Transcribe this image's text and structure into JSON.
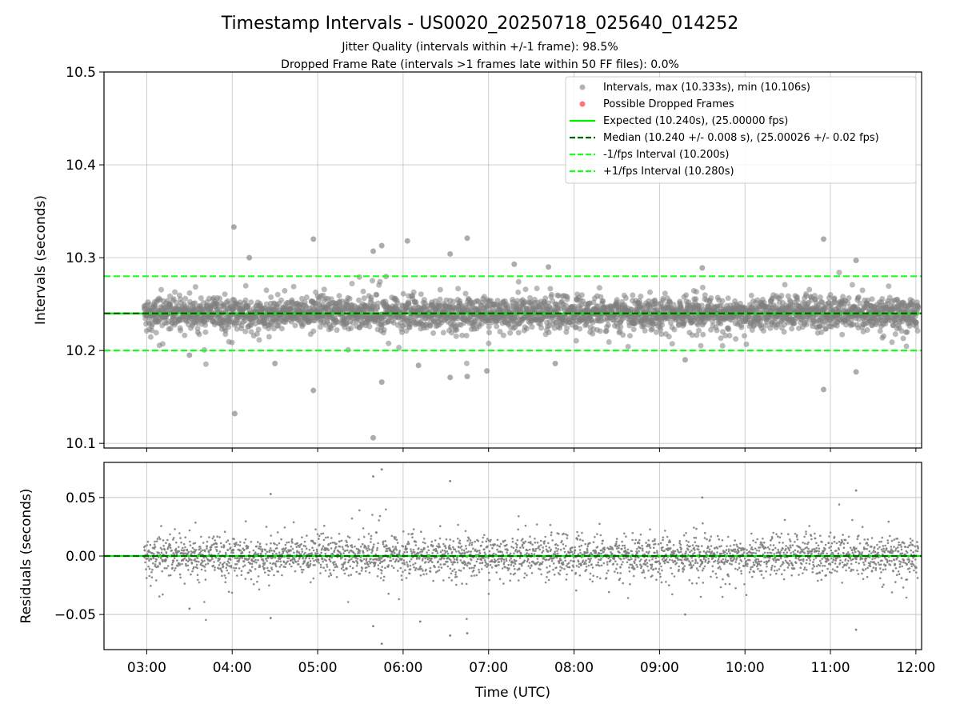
{
  "chart_data": [
    {
      "type": "scatter",
      "title": "Timestamp Intervals - US0020_20250718_025640_014252",
      "subtitle_lines": [
        "Jitter Quality (intervals within +/-1 frame): 98.5%",
        "Dropped Frame Rate (intervals >1 frames late within 50 FF files): 0.0%"
      ],
      "ylabel": "Intervals (seconds)",
      "ylim": [
        10.095,
        10.5
      ],
      "xlim": [
        "02:30",
        "12:04"
      ],
      "yticks": [
        "10.1",
        "10.2",
        "10.3",
        "10.4",
        "10.5"
      ],
      "grid": true,
      "legend_position": "top-right",
      "legend": [
        "Intervals, max (10.333s), min (10.106s)",
        "Possible Dropped Frames",
        "Expected (10.240s), (25.00000 fps)",
        "Median (10.240 +/- 0.008 s), (25.00026 +/- 0.02 fps)",
        "-1/fps Interval (10.200s)",
        "+1/fps Interval (10.280s)"
      ],
      "series": [
        {
          "name": "Intervals, max (10.333s), min (10.106s)",
          "color": "#808080",
          "points": [
            [
              3.0,
              10.24
            ],
            [
              12.0,
              10.24
            ]
          ]
        },
        {
          "name": "Possible Dropped Frames",
          "color": "#ff5a5a",
          "points": []
        }
      ],
      "summary": {
        "max": 10.333,
        "min": 10.106,
        "median": 10.24,
        "median_sd": 0.008,
        "count_approx": 3150
      },
      "outliers": [
        [
          4.02,
          10.333
        ],
        [
          4.03,
          10.132
        ],
        [
          4.95,
          10.32
        ],
        [
          4.95,
          10.157
        ],
        [
          5.65,
          10.307
        ],
        [
          5.75,
          10.313
        ],
        [
          5.65,
          10.106
        ],
        [
          5.75,
          10.166
        ],
        [
          6.75,
          10.321
        ],
        [
          6.55,
          10.304
        ],
        [
          6.55,
          10.171
        ],
        [
          6.75,
          10.172
        ],
        [
          6.98,
          10.178
        ],
        [
          6.18,
          10.184
        ],
        [
          7.78,
          10.186
        ],
        [
          10.92,
          10.32
        ],
        [
          10.92,
          10.158
        ],
        [
          11.3,
          10.297
        ],
        [
          11.3,
          10.177
        ],
        [
          4.2,
          10.3
        ],
        [
          6.05,
          10.318
        ],
        [
          7.3,
          10.293
        ],
        [
          7.7,
          10.29
        ],
        [
          9.5,
          10.289
        ],
        [
          9.3,
          10.19
        ],
        [
          3.5,
          10.195
        ],
        [
          4.5,
          10.186
        ]
      ],
      "reference_lines": [
        {
          "label": "Expected (10.240s), (25.00000 fps)",
          "y": 10.24,
          "color": "#00ee00",
          "style": "solid"
        },
        {
          "label": "Median (10.240 +/- 0.008 s), (25.00026 +/- 0.02 fps)",
          "y": 10.24,
          "color": "#006400",
          "style": "dashed"
        },
        {
          "label": "-1/fps Interval (10.200s)",
          "y": 10.2,
          "color": "#1aff1a",
          "style": "dashed"
        },
        {
          "label": "+1/fps Interval (10.280s)",
          "y": 10.28,
          "color": "#1aff1a",
          "style": "dashed"
        }
      ]
    },
    {
      "type": "scatter",
      "ylabel": "Residuals (seconds)",
      "xlabel": "Time (UTC)",
      "ylim": [
        -0.08,
        0.08
      ],
      "xlim": [
        "02:30",
        "12:04"
      ],
      "yticks": [
        "0.05",
        "0.00",
        "−0.05"
      ],
      "xticks": [
        "03:00",
        "04:00",
        "05:00",
        "06:00",
        "07:00",
        "08:00",
        "09:00",
        "10:00",
        "11:00",
        "12:00"
      ],
      "grid": true,
      "series": [
        {
          "name": "",
          "color": "#808080",
          "points": [
            [
              3.0,
              0.0
            ],
            [
              12.0,
              0.0
            ]
          ]
        }
      ],
      "outliers": [
        [
          5.75,
          0.074
        ],
        [
          5.65,
          0.068
        ],
        [
          6.55,
          0.064
        ],
        [
          6.55,
          -0.068
        ],
        [
          5.75,
          -0.075
        ],
        [
          5.65,
          -0.06
        ],
        [
          6.75,
          -0.066
        ],
        [
          11.3,
          0.056
        ],
        [
          11.3,
          -0.063
        ],
        [
          4.45,
          0.053
        ],
        [
          9.3,
          -0.05
        ],
        [
          4.45,
          -0.053
        ],
        [
          3.5,
          -0.045
        ],
        [
          6.2,
          -0.056
        ],
        [
          9.5,
          0.05
        ]
      ],
      "reference_lines": [
        {
          "y": 0.0,
          "color": "#00ee00",
          "style": "solid"
        },
        {
          "y": 0.0,
          "color": "#006400",
          "style": "dashed"
        }
      ]
    }
  ]
}
